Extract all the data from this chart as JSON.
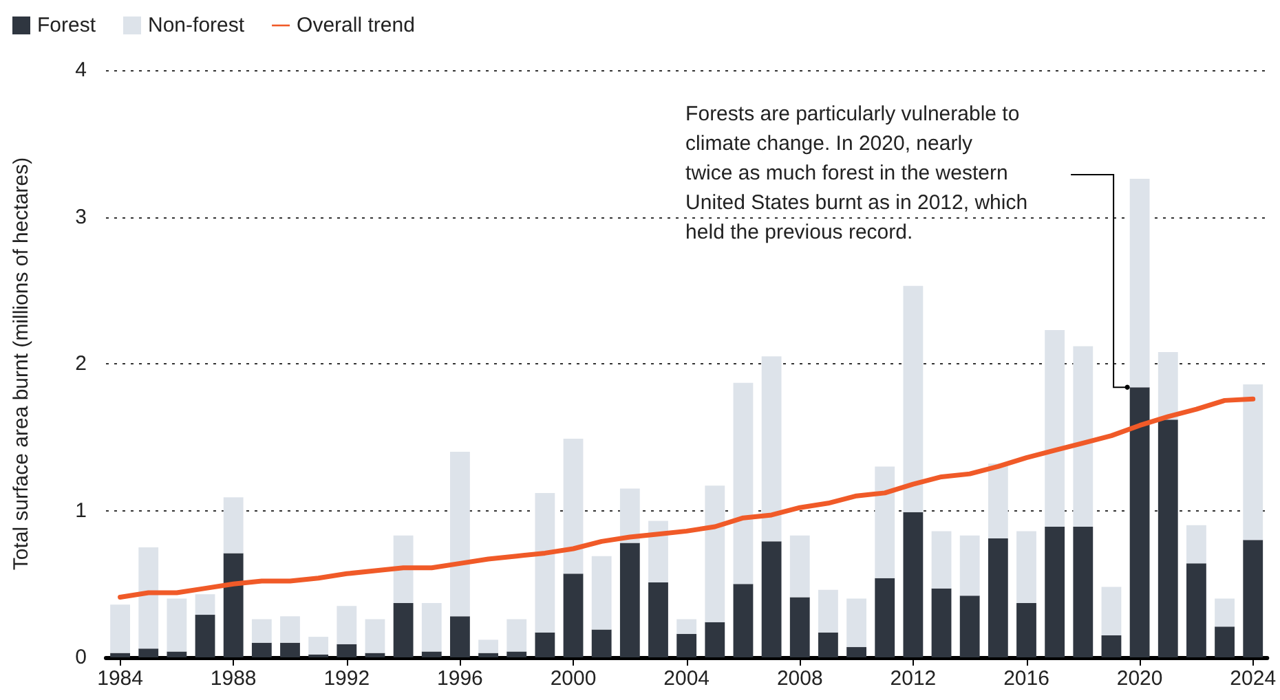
{
  "chart_data": {
    "type": "bar",
    "stacked": true,
    "categories": [
      "1984",
      null,
      null,
      null,
      "1988",
      null,
      null,
      null,
      "1992",
      null,
      null,
      null,
      "1996",
      null,
      null,
      null,
      "2000",
      null,
      null,
      null,
      "2004",
      null,
      null,
      null,
      "2008",
      null,
      null,
      null,
      "2012",
      null,
      null,
      null,
      "2016",
      null,
      null,
      null,
      "2020",
      null,
      null,
      null,
      "2024"
    ],
    "ylabel": "Total surface area burnt (millions of hectares)",
    "ylim": [
      0,
      4
    ],
    "yticks": [
      0,
      1,
      2,
      3,
      4
    ],
    "grid": "y",
    "legend": "top left",
    "series": [
      {
        "name": "Forest",
        "color": "#2f3640",
        "values": [
          0.03,
          0.06,
          0.04,
          0.29,
          0.71,
          0.1,
          0.1,
          0.02,
          0.09,
          0.03,
          0.37,
          0.04,
          0.28,
          0.03,
          0.04,
          0.17,
          0.57,
          0.19,
          0.78,
          0.51,
          0.16,
          0.24,
          0.5,
          0.79,
          0.41,
          0.17,
          0.07,
          0.54,
          0.99,
          0.47,
          0.42,
          0.81,
          0.37,
          0.89,
          0.89,
          0.15,
          1.84,
          1.62,
          0.64,
          0.21,
          0.8
        ]
      },
      {
        "name": "Non-forest",
        "color": "#dde3ea",
        "values": [
          0.33,
          0.69,
          0.36,
          0.14,
          0.38,
          0.16,
          0.18,
          0.12,
          0.26,
          0.23,
          0.46,
          0.33,
          1.12,
          0.09,
          0.22,
          0.95,
          0.92,
          0.5,
          0.37,
          0.42,
          0.1,
          0.93,
          1.37,
          1.26,
          0.42,
          0.29,
          0.33,
          0.76,
          1.54,
          0.39,
          0.41,
          0.51,
          0.49,
          1.34,
          1.23,
          0.33,
          1.42,
          0.46,
          0.26,
          0.19,
          1.06
        ]
      },
      {
        "name": "Overall trend",
        "type": "line",
        "color": "#f05a28",
        "values": [
          0.41,
          0.44,
          0.44,
          0.47,
          0.5,
          0.52,
          0.52,
          0.54,
          0.57,
          0.59,
          0.61,
          0.61,
          0.64,
          0.67,
          0.69,
          0.71,
          0.74,
          0.79,
          0.82,
          0.84,
          0.86,
          0.89,
          0.95,
          0.97,
          1.02,
          1.05,
          1.1,
          1.12,
          1.18,
          1.23,
          1.25,
          1.3,
          1.36,
          1.41,
          1.46,
          1.51,
          1.58,
          1.64,
          1.69,
          1.75,
          1.76
        ]
      }
    ],
    "annotations": [
      "Forests are particularly vulnerable to\nclimate change. In 2020, nearly\ntwice as much forest in the western\nUnited States burnt as in 2012, which\nheld the previous record."
    ]
  }
}
